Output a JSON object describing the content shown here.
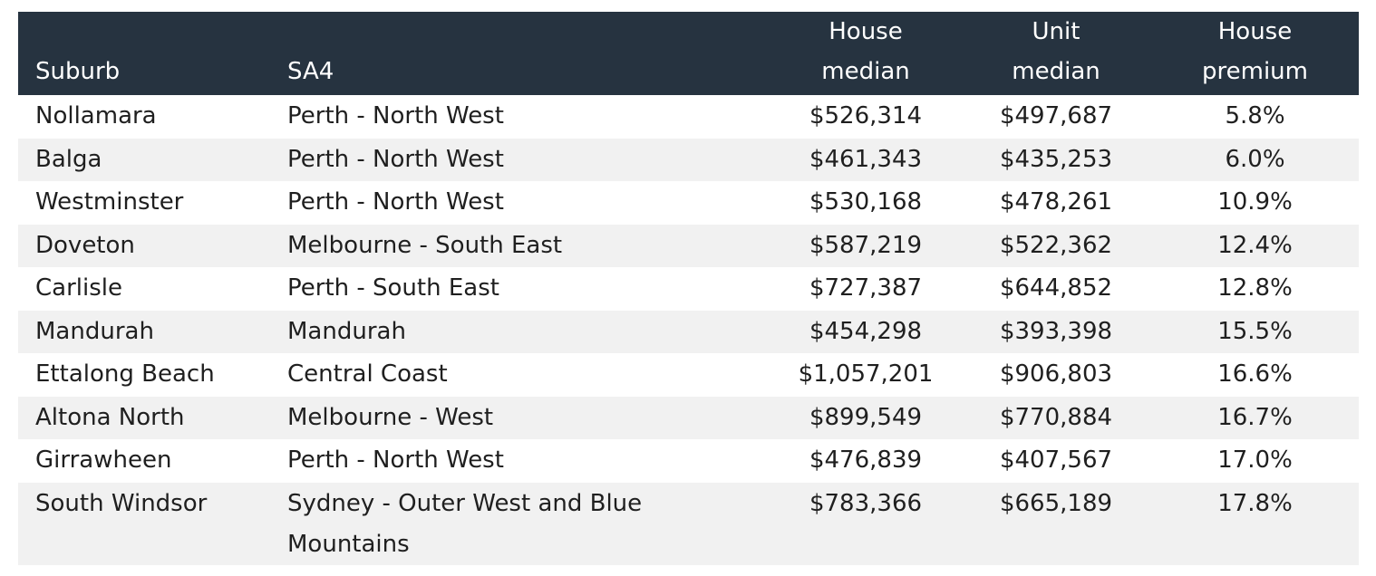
{
  "chart_data": {
    "type": "table",
    "columns": [
      "Suburb",
      "SA4",
      "House median",
      "Unit median",
      "House premium"
    ],
    "header_lines": {
      "suburb": [
        "Suburb"
      ],
      "sa4": [
        "SA4"
      ],
      "house": [
        "House",
        "median"
      ],
      "unit": [
        "Unit",
        "median"
      ],
      "premium": [
        "House",
        "premium"
      ]
    },
    "rows": [
      {
        "suburb": "Nollamara",
        "sa4": "Perth - North West",
        "house": "$526,314",
        "unit": "$497,687",
        "premium": "5.8%"
      },
      {
        "suburb": "Balga",
        "sa4": "Perth - North West",
        "house": "$461,343",
        "unit": "$435,253",
        "premium": "6.0%"
      },
      {
        "suburb": "Westminster",
        "sa4": "Perth - North West",
        "house": "$530,168",
        "unit": "$478,261",
        "premium": "10.9%"
      },
      {
        "suburb": "Doveton",
        "sa4": "Melbourne - South East",
        "house": "$587,219",
        "unit": "$522,362",
        "premium": "12.4%"
      },
      {
        "suburb": "Carlisle",
        "sa4": "Perth - South East",
        "house": "$727,387",
        "unit": "$644,852",
        "premium": "12.8%"
      },
      {
        "suburb": "Mandurah",
        "sa4": "Mandurah",
        "house": "$454,298",
        "unit": "$393,398",
        "premium": "15.5%"
      },
      {
        "suburb": "Ettalong Beach",
        "sa4": "Central Coast",
        "house": "$1,057,201",
        "unit": "$906,803",
        "premium": "16.6%"
      },
      {
        "suburb": "Altona North",
        "sa4": "Melbourne - West",
        "house": "$899,549",
        "unit": "$770,884",
        "premium": "16.7%"
      },
      {
        "suburb": "Girrawheen",
        "sa4": "Perth - North West",
        "house": "$476,839",
        "unit": "$407,567",
        "premium": "17.0%"
      },
      {
        "suburb": "South Windsor",
        "sa4": "Sydney - Outer West and Blue Mountains",
        "house": "$783,366",
        "unit": "$665,189",
        "premium": "17.8%"
      }
    ],
    "colors": {
      "header_bg": "#263340",
      "header_text": "#ffffff",
      "stripe": "#f1f1f1"
    }
  }
}
